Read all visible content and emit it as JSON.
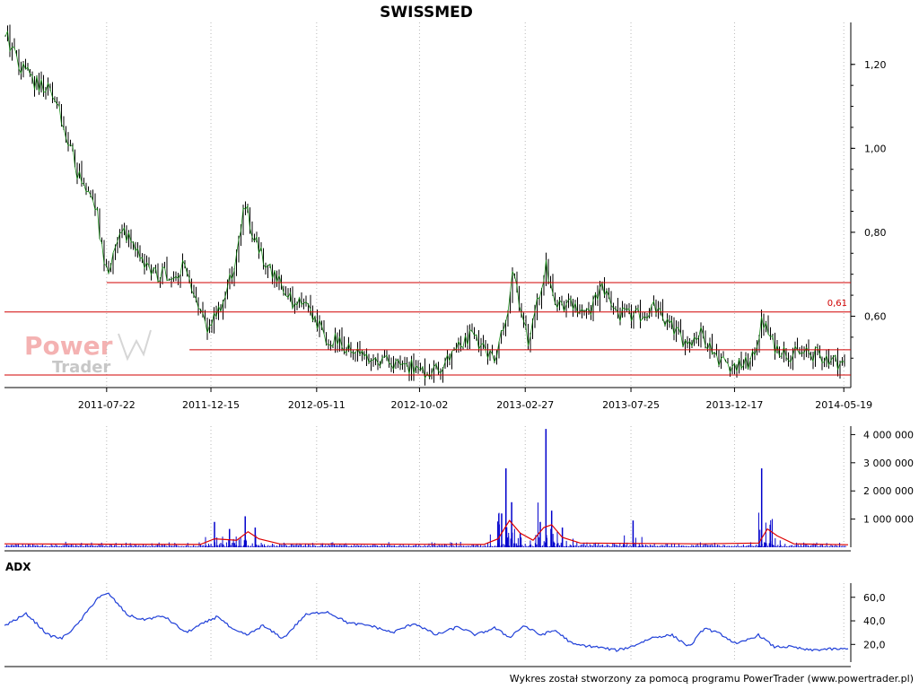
{
  "chart_data": [
    {
      "type": "candlestick",
      "title": "SWISSMED",
      "x_ticks": [
        "2011-07-22",
        "2011-12-15",
        "2012-05-11",
        "2012-10-02",
        "2013-02-27",
        "2013-07-25",
        "2013-12-17",
        "2014-05-19"
      ],
      "y_ticks": [
        "1,20",
        "1,00",
        "0,80",
        "0,60"
      ],
      "ylim": [
        0.43,
        1.3
      ],
      "horizontal_lines": [
        {
          "y": 0.68,
          "x_from_date": "2011-07-22"
        },
        {
          "y": 0.61,
          "label": "0,61"
        },
        {
          "y": 0.52,
          "x_from_date": "2011-11-15"
        },
        {
          "y": 0.46
        }
      ],
      "price_path": [
        [
          "2011-03-01",
          1.28
        ],
        [
          "2011-03-20",
          1.2
        ],
        [
          "2011-04-10",
          1.16
        ],
        [
          "2011-05-05",
          1.14
        ],
        [
          "2011-05-25",
          1.05
        ],
        [
          "2011-06-15",
          0.92
        ],
        [
          "2011-07-05",
          0.88
        ],
        [
          "2011-07-22",
          0.7
        ],
        [
          "2011-08-10",
          0.82
        ],
        [
          "2011-08-25",
          0.78
        ],
        [
          "2011-09-10",
          0.72
        ],
        [
          "2011-10-01",
          0.7
        ],
        [
          "2011-10-25",
          0.7
        ],
        [
          "2011-11-10",
          0.72
        ],
        [
          "2011-11-25",
          0.64
        ],
        [
          "2011-12-10",
          0.56
        ],
        [
          "2011-12-30",
          0.62
        ],
        [
          "2012-01-20",
          0.74
        ],
        [
          "2012-02-01",
          0.87
        ],
        [
          "2012-02-15",
          0.78
        ],
        [
          "2012-03-10",
          0.7
        ],
        [
          "2012-04-05",
          0.64
        ],
        [
          "2012-04-30",
          0.61
        ],
        [
          "2012-05-25",
          0.55
        ],
        [
          "2012-06-20",
          0.53
        ],
        [
          "2012-07-20",
          0.51
        ],
        [
          "2012-08-20",
          0.49
        ],
        [
          "2012-09-20",
          0.48
        ],
        [
          "2012-10-10",
          0.46
        ],
        [
          "2012-10-30",
          0.48
        ],
        [
          "2012-11-20",
          0.51
        ],
        [
          "2012-12-10",
          0.55
        ],
        [
          "2012-12-31",
          0.53
        ],
        [
          "2013-01-15",
          0.5
        ],
        [
          "2013-01-31",
          0.6
        ],
        [
          "2013-02-10",
          0.7
        ],
        [
          "2013-02-20",
          0.62
        ],
        [
          "2013-03-05",
          0.53
        ],
        [
          "2013-03-15",
          0.62
        ],
        [
          "2013-03-28",
          0.72
        ],
        [
          "2013-04-10",
          0.62
        ],
        [
          "2013-05-01",
          0.64
        ],
        [
          "2013-05-25",
          0.6
        ],
        [
          "2013-06-15",
          0.67
        ],
        [
          "2013-07-10",
          0.6
        ],
        [
          "2013-08-05",
          0.6
        ],
        [
          "2013-08-25",
          0.62
        ],
        [
          "2013-09-15",
          0.58
        ],
        [
          "2013-10-10",
          0.54
        ],
        [
          "2013-11-01",
          0.56
        ],
        [
          "2013-11-25",
          0.5
        ],
        [
          "2013-12-17",
          0.48
        ],
        [
          "2014-01-10",
          0.49
        ],
        [
          "2014-01-25",
          0.59
        ],
        [
          "2014-02-10",
          0.53
        ],
        [
          "2014-03-05",
          0.51
        ],
        [
          "2014-04-05",
          0.51
        ],
        [
          "2014-04-30",
          0.5
        ],
        [
          "2014-05-25",
          0.48
        ]
      ]
    },
    {
      "type": "bar",
      "title": "",
      "y_ticks": [
        "4 000 000",
        "3 000 000",
        "2 000 000",
        "1 000 000"
      ],
      "ylim": [
        0,
        4300000
      ],
      "volume_spikes": [
        [
          "2011-12-20",
          900000
        ],
        [
          "2012-01-10",
          650000
        ],
        [
          "2012-02-01",
          1100000
        ],
        [
          "2012-02-15",
          700000
        ],
        [
          "2013-01-25",
          1200000
        ],
        [
          "2013-01-31",
          2800000
        ],
        [
          "2013-02-08",
          1600000
        ],
        [
          "2013-02-20",
          500000
        ],
        [
          "2013-03-20",
          900000
        ],
        [
          "2013-03-28",
          4200000
        ],
        [
          "2013-04-05",
          1300000
        ],
        [
          "2013-04-20",
          700000
        ],
        [
          "2013-07-28",
          950000
        ],
        [
          "2014-01-24",
          2800000
        ],
        [
          "2014-02-05",
          800000
        ]
      ],
      "moving_average": [
        [
          "2011-03-01",
          120000
        ],
        [
          "2011-11-30",
          100000
        ],
        [
          "2011-12-20",
          300000
        ],
        [
          "2012-01-20",
          250000
        ],
        [
          "2012-02-05",
          550000
        ],
        [
          "2012-02-20",
          300000
        ],
        [
          "2012-03-20",
          120000
        ],
        [
          "2012-12-31",
          100000
        ],
        [
          "2013-01-20",
          300000
        ],
        [
          "2013-02-05",
          950000
        ],
        [
          "2013-02-20",
          500000
        ],
        [
          "2013-03-10",
          250000
        ],
        [
          "2013-03-25",
          700000
        ],
        [
          "2013-04-05",
          800000
        ],
        [
          "2013-04-20",
          350000
        ],
        [
          "2013-05-15",
          150000
        ],
        [
          "2013-11-01",
          120000
        ],
        [
          "2014-01-20",
          150000
        ],
        [
          "2014-02-01",
          650000
        ],
        [
          "2014-02-15",
          400000
        ],
        [
          "2014-03-10",
          120000
        ],
        [
          "2014-05-25",
          90000
        ]
      ]
    },
    {
      "type": "line",
      "title": "ADX",
      "y_ticks": [
        "60,0",
        "40,0",
        "20,0"
      ],
      "ylim": [
        5,
        72
      ],
      "series": [
        {
          "values": [
            [
              "2011-03-01",
              36
            ],
            [
              "2011-04-01",
              46
            ],
            [
              "2011-05-01",
              28
            ],
            [
              "2011-05-20",
              25
            ],
            [
              "2011-06-10",
              36
            ],
            [
              "2011-07-10",
              60
            ],
            [
              "2011-07-25",
              63
            ],
            [
              "2011-08-20",
              45
            ],
            [
              "2011-09-10",
              41
            ],
            [
              "2011-10-10",
              44
            ],
            [
              "2011-11-10",
              30
            ],
            [
              "2011-12-05",
              38
            ],
            [
              "2011-12-25",
              44
            ],
            [
              "2012-01-15",
              32
            ],
            [
              "2012-02-05",
              28
            ],
            [
              "2012-02-25",
              36
            ],
            [
              "2012-03-25",
              25
            ],
            [
              "2012-04-25",
              45
            ],
            [
              "2012-05-25",
              48
            ],
            [
              "2012-06-25",
              38
            ],
            [
              "2012-07-25",
              36
            ],
            [
              "2012-08-25",
              30
            ],
            [
              "2012-09-25",
              38
            ],
            [
              "2012-10-25",
              28
            ],
            [
              "2012-11-25",
              35
            ],
            [
              "2012-12-20",
              28
            ],
            [
              "2013-01-15",
              34
            ],
            [
              "2013-02-05",
              26
            ],
            [
              "2013-02-25",
              36
            ],
            [
              "2013-03-20",
              28
            ],
            [
              "2013-04-10",
              32
            ],
            [
              "2013-05-05",
              20
            ],
            [
              "2013-06-05",
              18
            ],
            [
              "2013-07-05",
              15
            ],
            [
              "2013-07-25",
              18
            ],
            [
              "2013-08-25",
              26
            ],
            [
              "2013-09-20",
              28
            ],
            [
              "2013-10-15",
              18
            ],
            [
              "2013-11-05",
              34
            ],
            [
              "2013-11-30",
              28
            ],
            [
              "2013-12-20",
              20
            ],
            [
              "2014-01-20",
              28
            ],
            [
              "2014-02-10",
              18
            ],
            [
              "2014-03-05",
              18
            ],
            [
              "2014-04-01",
              15
            ],
            [
              "2014-04-25",
              16
            ],
            [
              "2014-05-25",
              16
            ]
          ]
        }
      ]
    }
  ],
  "footer": "Wykres został stworzony za pomocą programu PowerTrader (www.powertrader.pl)",
  "watermark": {
    "line1": "Power",
    "line2": "Trader"
  },
  "colors": {
    "price_body": "#000000",
    "price_connector": "#008000",
    "resistance_line": "#d00000",
    "volume_bar": "#0000cc",
    "volume_average": "#dd0000",
    "adx_line": "#1f3fd8"
  }
}
